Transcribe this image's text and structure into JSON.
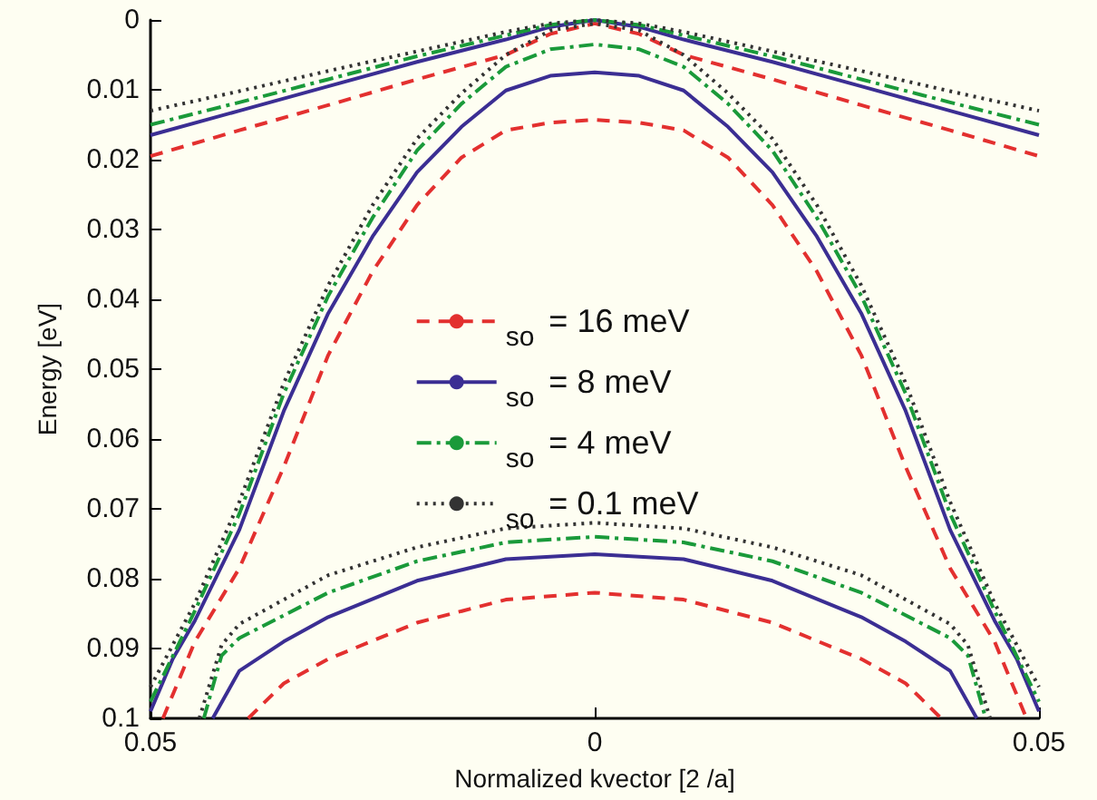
{
  "chart_data": {
    "type": "line",
    "xlabel": "Normalized kvector [2 /a]",
    "ylabel": "Energy [eV]",
    "xlim": [
      -0.05,
      0.05
    ],
    "xticks": [
      {
        "value": -0.05,
        "label": "0.05"
      },
      0,
      0.05
    ],
    "ylim": [
      0.1,
      0
    ],
    "yticks": [
      0,
      0.01,
      0.02,
      0.03,
      0.04,
      0.05,
      0.06,
      0.07,
      0.08,
      0.09,
      0.1
    ],
    "grid": false,
    "legend": "center",
    "marker": "none",
    "series": [
      {
        "name": "$_{so}$ = 16 meV",
        "color": "#e3302f",
        "line_style": "dashed",
        "x": [
          -0.05,
          -0.04,
          -0.03,
          -0.02,
          -0.01,
          -0.005,
          0,
          0.005,
          0.01,
          0.02,
          0.03,
          0.04,
          0.05
        ],
        "values": [
          0.0195,
          0.0158,
          0.0122,
          0.0085,
          0.005,
          0.002,
          0.0005,
          0.002,
          0.005,
          0.0085,
          0.0122,
          0.0158,
          0.0195
        ]
      },
      {
        "color": "#e3302f",
        "line_style": "dashed",
        "x": [
          -0.0486,
          -0.045,
          -0.04,
          -0.035,
          -0.03,
          -0.025,
          -0.02,
          -0.015,
          -0.01,
          -0.005,
          0,
          0.005,
          0.01,
          0.015,
          0.02,
          0.025,
          0.03,
          0.035,
          0.04,
          0.045,
          0.0486
        ],
        "values": [
          0.1,
          0.089,
          0.0785,
          0.064,
          0.048,
          0.036,
          0.0265,
          0.0197,
          0.0158,
          0.0147,
          0.0143,
          0.0147,
          0.0158,
          0.0197,
          0.0265,
          0.036,
          0.048,
          0.064,
          0.0785,
          0.089,
          0.1
        ]
      },
      {
        "color": "#e3302f",
        "line_style": "dashed",
        "x": [
          -0.039,
          -0.035,
          -0.03,
          -0.02,
          -0.01,
          0,
          0.01,
          0.02,
          0.03,
          0.035,
          0.039
        ],
        "values": [
          0.1,
          0.095,
          0.0915,
          0.0863,
          0.083,
          0.082,
          0.083,
          0.0863,
          0.0915,
          0.095,
          0.1
        ]
      },
      {
        "name": "$_{so}$ = 8 meV",
        "color": "#3b2e93",
        "line_style": "solid",
        "x": [
          -0.05,
          -0.04,
          -0.03,
          -0.02,
          -0.01,
          -0.005,
          0,
          0.005,
          0.01,
          0.02,
          0.03,
          0.04,
          0.05
        ],
        "values": [
          0.0165,
          0.013,
          0.0095,
          0.006,
          0.0028,
          0.001,
          0,
          0.001,
          0.0028,
          0.006,
          0.0095,
          0.013,
          0.0165
        ]
      },
      {
        "color": "#3b2e93",
        "line_style": "solid",
        "x": [
          -0.05,
          -0.0475,
          -0.045,
          -0.04,
          -0.035,
          -0.03,
          -0.025,
          -0.02,
          -0.015,
          -0.01,
          -0.005,
          0,
          0.005,
          0.01,
          0.015,
          0.02,
          0.025,
          0.03,
          0.035,
          0.04,
          0.045,
          0.0475,
          0.05
        ],
        "values": [
          0.099,
          0.0915,
          0.086,
          0.073,
          0.056,
          0.042,
          0.031,
          0.0218,
          0.0153,
          0.0101,
          0.008,
          0.0075,
          0.008,
          0.0101,
          0.0153,
          0.0218,
          0.031,
          0.042,
          0.056,
          0.073,
          0.086,
          0.0915,
          0.099
        ]
      },
      {
        "color": "#3b2e93",
        "line_style": "solid",
        "x": [
          -0.043,
          -0.04,
          -0.035,
          -0.03,
          -0.02,
          -0.01,
          0,
          0.01,
          0.02,
          0.03,
          0.035,
          0.04,
          0.043
        ],
        "values": [
          0.1,
          0.0932,
          0.089,
          0.0855,
          0.0803,
          0.0772,
          0.0765,
          0.0772,
          0.0803,
          0.0855,
          0.089,
          0.0932,
          0.1
        ]
      },
      {
        "name": "$_{so}$ = 4 meV",
        "color": "#1a9a3a",
        "line_style": "dashdot",
        "x": [
          -0.05,
          -0.04,
          -0.03,
          -0.02,
          -0.01,
          -0.005,
          0,
          0.005,
          0.01,
          0.02,
          0.03,
          0.04,
          0.05
        ],
        "values": [
          0.015,
          0.0118,
          0.0085,
          0.0052,
          0.0022,
          0.0007,
          0,
          0.0007,
          0.0022,
          0.0052,
          0.0085,
          0.0118,
          0.015
        ]
      },
      {
        "color": "#1a9a3a",
        "line_style": "dashdot",
        "x": [
          -0.05,
          -0.045,
          -0.04,
          -0.035,
          -0.03,
          -0.025,
          -0.02,
          -0.015,
          -0.01,
          -0.005,
          0,
          0.005,
          0.01,
          0.015,
          0.02,
          0.025,
          0.03,
          0.035,
          0.04,
          0.045,
          0.05
        ],
        "values": [
          0.0976,
          0.0846,
          0.0707,
          0.0535,
          0.0395,
          0.0283,
          0.0187,
          0.012,
          0.0067,
          0.0042,
          0.0035,
          0.0042,
          0.0067,
          0.012,
          0.0187,
          0.0283,
          0.0395,
          0.0535,
          0.0707,
          0.0846,
          0.0976
        ]
      },
      {
        "color": "#1a9a3a",
        "line_style": "dashdot",
        "x": [
          -0.044,
          -0.042,
          -0.04,
          -0.03,
          -0.02,
          -0.01,
          0,
          0.01,
          0.02,
          0.03,
          0.04,
          0.042,
          0.044
        ],
        "values": [
          0.1,
          0.091,
          0.0885,
          0.082,
          0.0775,
          0.0748,
          0.074,
          0.0748,
          0.0775,
          0.082,
          0.0885,
          0.091,
          0.1
        ]
      },
      {
        "name": "$_{so}$ = 0.1 meV",
        "color": "#333333",
        "line_style": "dotted",
        "x": [
          -0.05,
          -0.04,
          -0.03,
          -0.02,
          -0.01,
          -0.005,
          0,
          0.005,
          0.01,
          0.02,
          0.03,
          0.04,
          0.05
        ],
        "values": [
          0.013,
          0.0102,
          0.0073,
          0.0045,
          0.0017,
          0.0005,
          0,
          0.0005,
          0.0017,
          0.0045,
          0.0073,
          0.0102,
          0.013
        ]
      },
      {
        "color": "#333333",
        "line_style": "dotted",
        "x": [
          -0.05,
          -0.045,
          -0.04,
          -0.035,
          -0.03,
          -0.025,
          -0.02,
          -0.015,
          -0.01,
          -0.005,
          0,
          0.005,
          0.01,
          0.015,
          0.02,
          0.025,
          0.03,
          0.035,
          0.04,
          0.045,
          0.05
        ],
        "values": [
          0.0955,
          0.0835,
          0.069,
          0.052,
          0.038,
          0.0265,
          0.017,
          0.0105,
          0.005,
          0.0015,
          0.0005,
          0.0015,
          0.005,
          0.0105,
          0.017,
          0.0265,
          0.038,
          0.052,
          0.069,
          0.0835,
          0.0955
        ]
      },
      {
        "color": "#333333",
        "line_style": "dotted",
        "x": [
          -0.0445,
          -0.042,
          -0.04,
          -0.03,
          -0.02,
          -0.01,
          0,
          0.01,
          0.02,
          0.03,
          0.04,
          0.042,
          0.0445
        ],
        "values": [
          0.1,
          0.0895,
          0.0865,
          0.0795,
          0.0755,
          0.0728,
          0.072,
          0.0728,
          0.0755,
          0.0795,
          0.0865,
          0.0895,
          0.1
        ]
      }
    ]
  }
}
